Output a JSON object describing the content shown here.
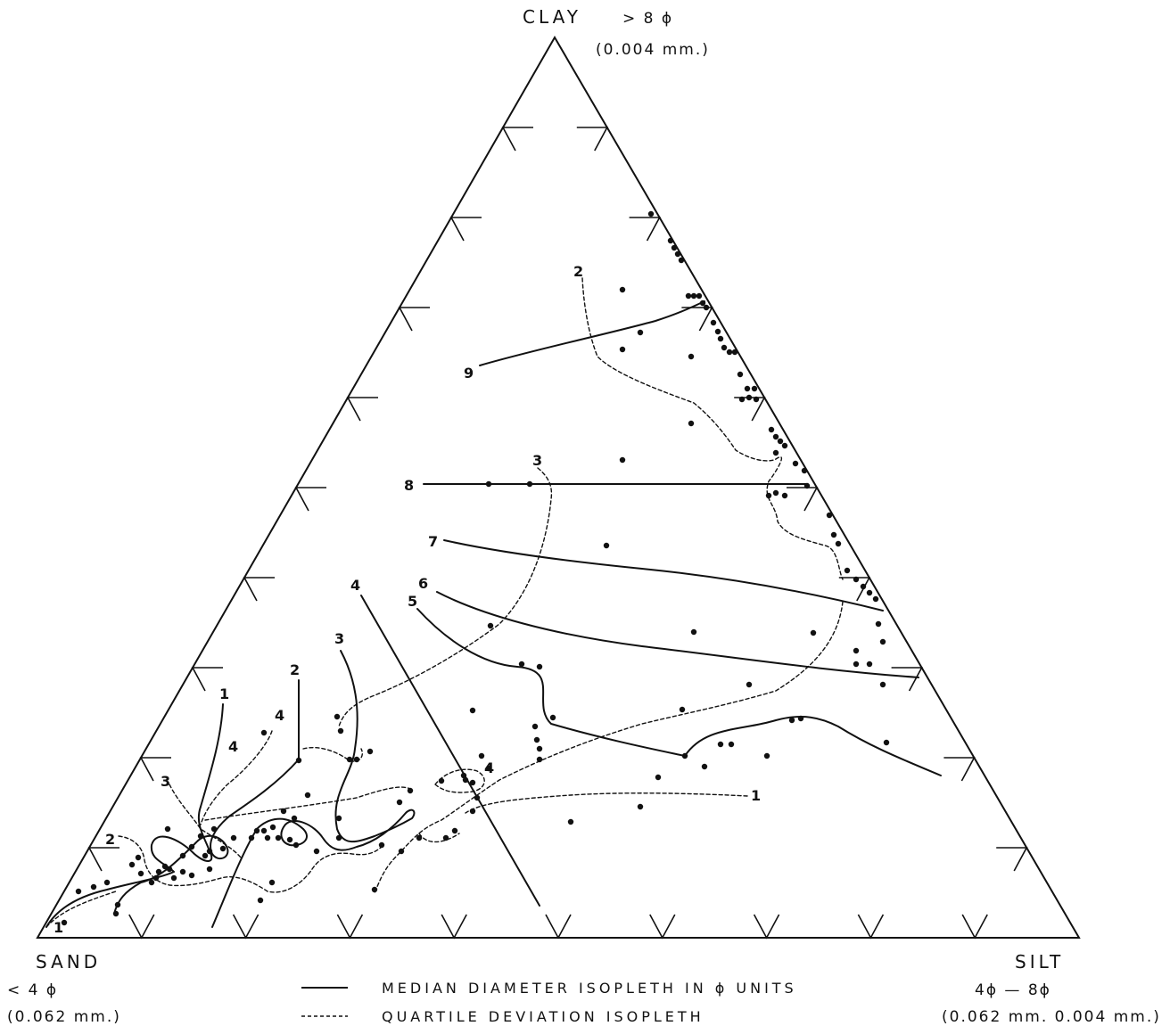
{
  "vertices": {
    "clay": {
      "label": "CLAY",
      "phi": "> 8 ϕ",
      "size": "(0.004 mm.)"
    },
    "sand": {
      "label": "SAND",
      "phi": "< 4 ϕ",
      "size": "(0.062 mm.)"
    },
    "silt": {
      "label": "SILT",
      "phi": "4ϕ  —  8ϕ",
      "size": "(0.062 mm.  0.004 mm.)"
    }
  },
  "legend": {
    "median": "MEDIAN   DIAMETER   ISOPLETH   IN  ϕ  UNITS",
    "quartile": "QUARTILE   DEVIATION   ISOPLETH"
  },
  "median_isopleth_labels": [
    "1",
    "2",
    "3",
    "4",
    "5",
    "6",
    "7",
    "8",
    "9"
  ],
  "quartile_isopleth_labels": [
    "1",
    "2",
    "3",
    "4",
    "4",
    "3",
    "2"
  ]
}
